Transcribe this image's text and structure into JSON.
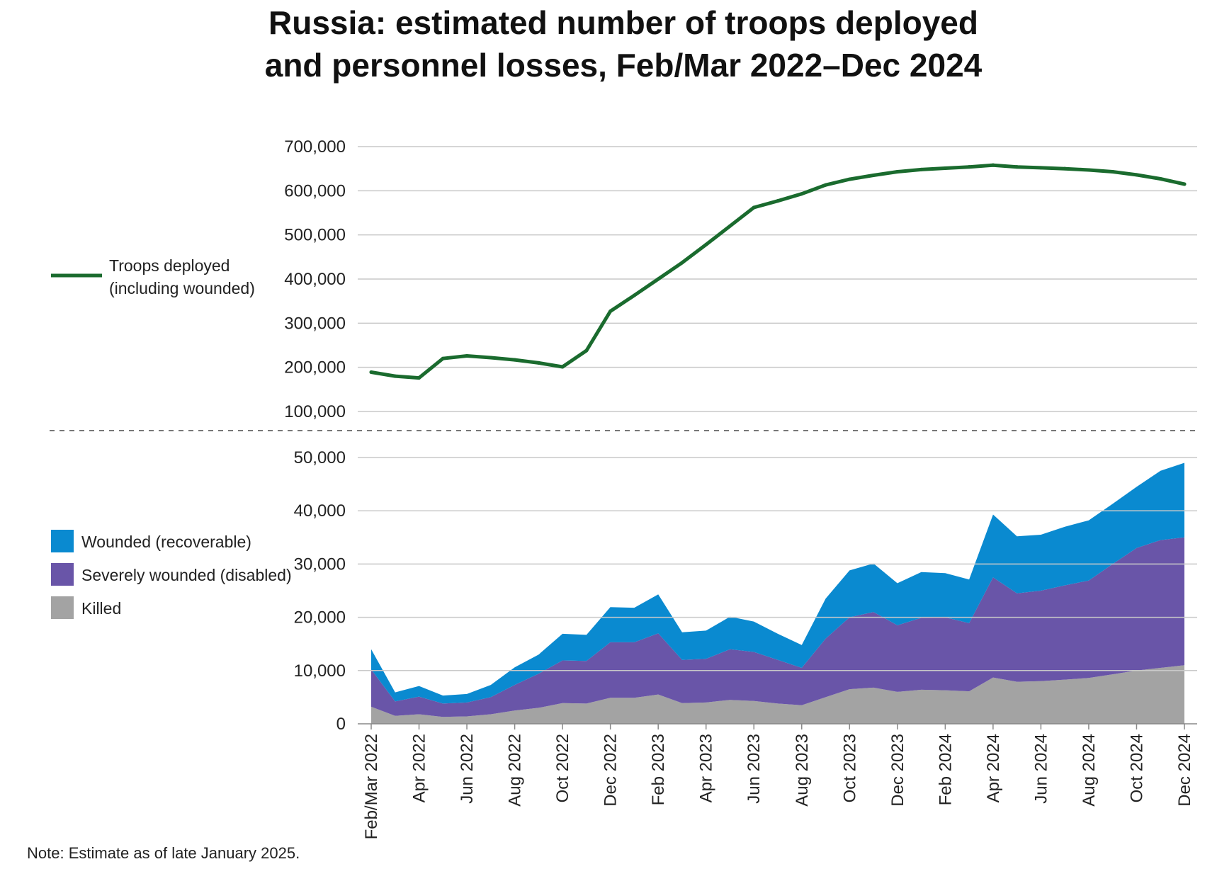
{
  "chart_data": {
    "title_lines": [
      "Russia: estimated number of troops deployed",
      "and personnel losses, Feb/Mar 2022–Dec 2024"
    ],
    "note": "Note: Estimate as of late January 2025.",
    "x": [
      "Feb/Mar 2022",
      "Mar 2022",
      "Apr 2022",
      "May 2022",
      "Jun 2022",
      "Jul 2022",
      "Aug 2022",
      "Sep 2022",
      "Oct 2022",
      "Nov 2022",
      "Dec 2022",
      "Jan 2023",
      "Feb 2023",
      "Mar 2023",
      "Apr 2023",
      "May 2023",
      "Jun 2023",
      "Jul 2023",
      "Aug 2023",
      "Sep 2023",
      "Oct 2023",
      "Nov 2023",
      "Dec 2023",
      "Jan 2024",
      "Feb 2024",
      "Mar 2024",
      "Apr 2024",
      "May 2024",
      "Jun 2024",
      "Jul 2024",
      "Aug 2024",
      "Sep 2024",
      "Oct 2024",
      "Nov 2024",
      "Dec 2024"
    ],
    "x_tick_labels": [
      "Feb/Mar 2022",
      "Apr 2022",
      "Jun 2022",
      "Aug 2022",
      "Oct 2022",
      "Dec 2022",
      "Feb 2023",
      "Apr 2023",
      "Jun 2023",
      "Aug 2023",
      "Oct 2023",
      "Dec 2023",
      "Feb 2024",
      "Apr 2024",
      "Jun 2024",
      "Aug 2024",
      "Oct 2024",
      "Dec 2024"
    ],
    "top_panel": {
      "type": "line",
      "series": [
        {
          "name": "Troops deployed (including wounded)",
          "color": "#1a6b2e",
          "values": [
            189000,
            180000,
            176000,
            220000,
            226000,
            222000,
            217000,
            210000,
            201000,
            238000,
            327000,
            363000,
            400000,
            437000,
            478000,
            520000,
            562000,
            577000,
            593000,
            613000,
            626000,
            635000,
            643000,
            648000,
            651000,
            654000,
            658000,
            654000,
            652000,
            650000,
            647000,
            643000,
            636000,
            627000,
            615000
          ]
        }
      ],
      "yticks": [
        "700,000",
        "600,000",
        "500,000",
        "400,000",
        "300,000",
        "200,000",
        "100,000"
      ],
      "ylim": [
        100000,
        700000
      ]
    },
    "bottom_panel": {
      "type": "area",
      "stacked": true,
      "series": [
        {
          "name": "Killed",
          "color": "#a3a3a3",
          "values": [
            3200,
            1500,
            1800,
            1300,
            1400,
            1800,
            2500,
            3000,
            3900,
            3800,
            4900,
            4900,
            5500,
            3900,
            4000,
            4500,
            4300,
            3800,
            3500,
            5000,
            6500,
            6800,
            6000,
            6400,
            6300,
            6100,
            8700,
            7900,
            8000,
            8300,
            8600,
            9300,
            10000,
            10500,
            11000
          ]
        },
        {
          "name": "Severely wounded (disabled)",
          "color": "#6955a8",
          "values": [
            7000,
            2700,
            3300,
            2500,
            2600,
            3200,
            4800,
            6400,
            8000,
            8000,
            10400,
            10400,
            11500,
            8100,
            8200,
            9500,
            9200,
            8200,
            7000,
            11000,
            13500,
            14200,
            12500,
            13500,
            13700,
            12800,
            18800,
            16600,
            17000,
            17700,
            18300,
            20700,
            23000,
            24000,
            24000
          ]
        },
        {
          "name": "Wounded (recoverable)",
          "color": "#0a8ad0",
          "values": [
            3800,
            1700,
            2000,
            1500,
            1600,
            2300,
            3300,
            3600,
            5000,
            4900,
            6600,
            6500,
            7300,
            5200,
            5300,
            6100,
            5700,
            4900,
            4300,
            7500,
            8800,
            9100,
            7900,
            8600,
            8300,
            8200,
            11800,
            10700,
            10500,
            11000,
            11300,
            11300,
            11500,
            13000,
            14000
          ]
        }
      ],
      "yticks": [
        "50,000",
        "40,000",
        "30,000",
        "20,000",
        "10,000",
        "0"
      ],
      "ylim": [
        0,
        50000
      ]
    },
    "legend_line": {
      "line1": "Troops deployed",
      "line2": "(including wounded)"
    },
    "legend_area": [
      "Wounded (recoverable)",
      "Severely wounded (disabled)",
      "Killed"
    ]
  }
}
